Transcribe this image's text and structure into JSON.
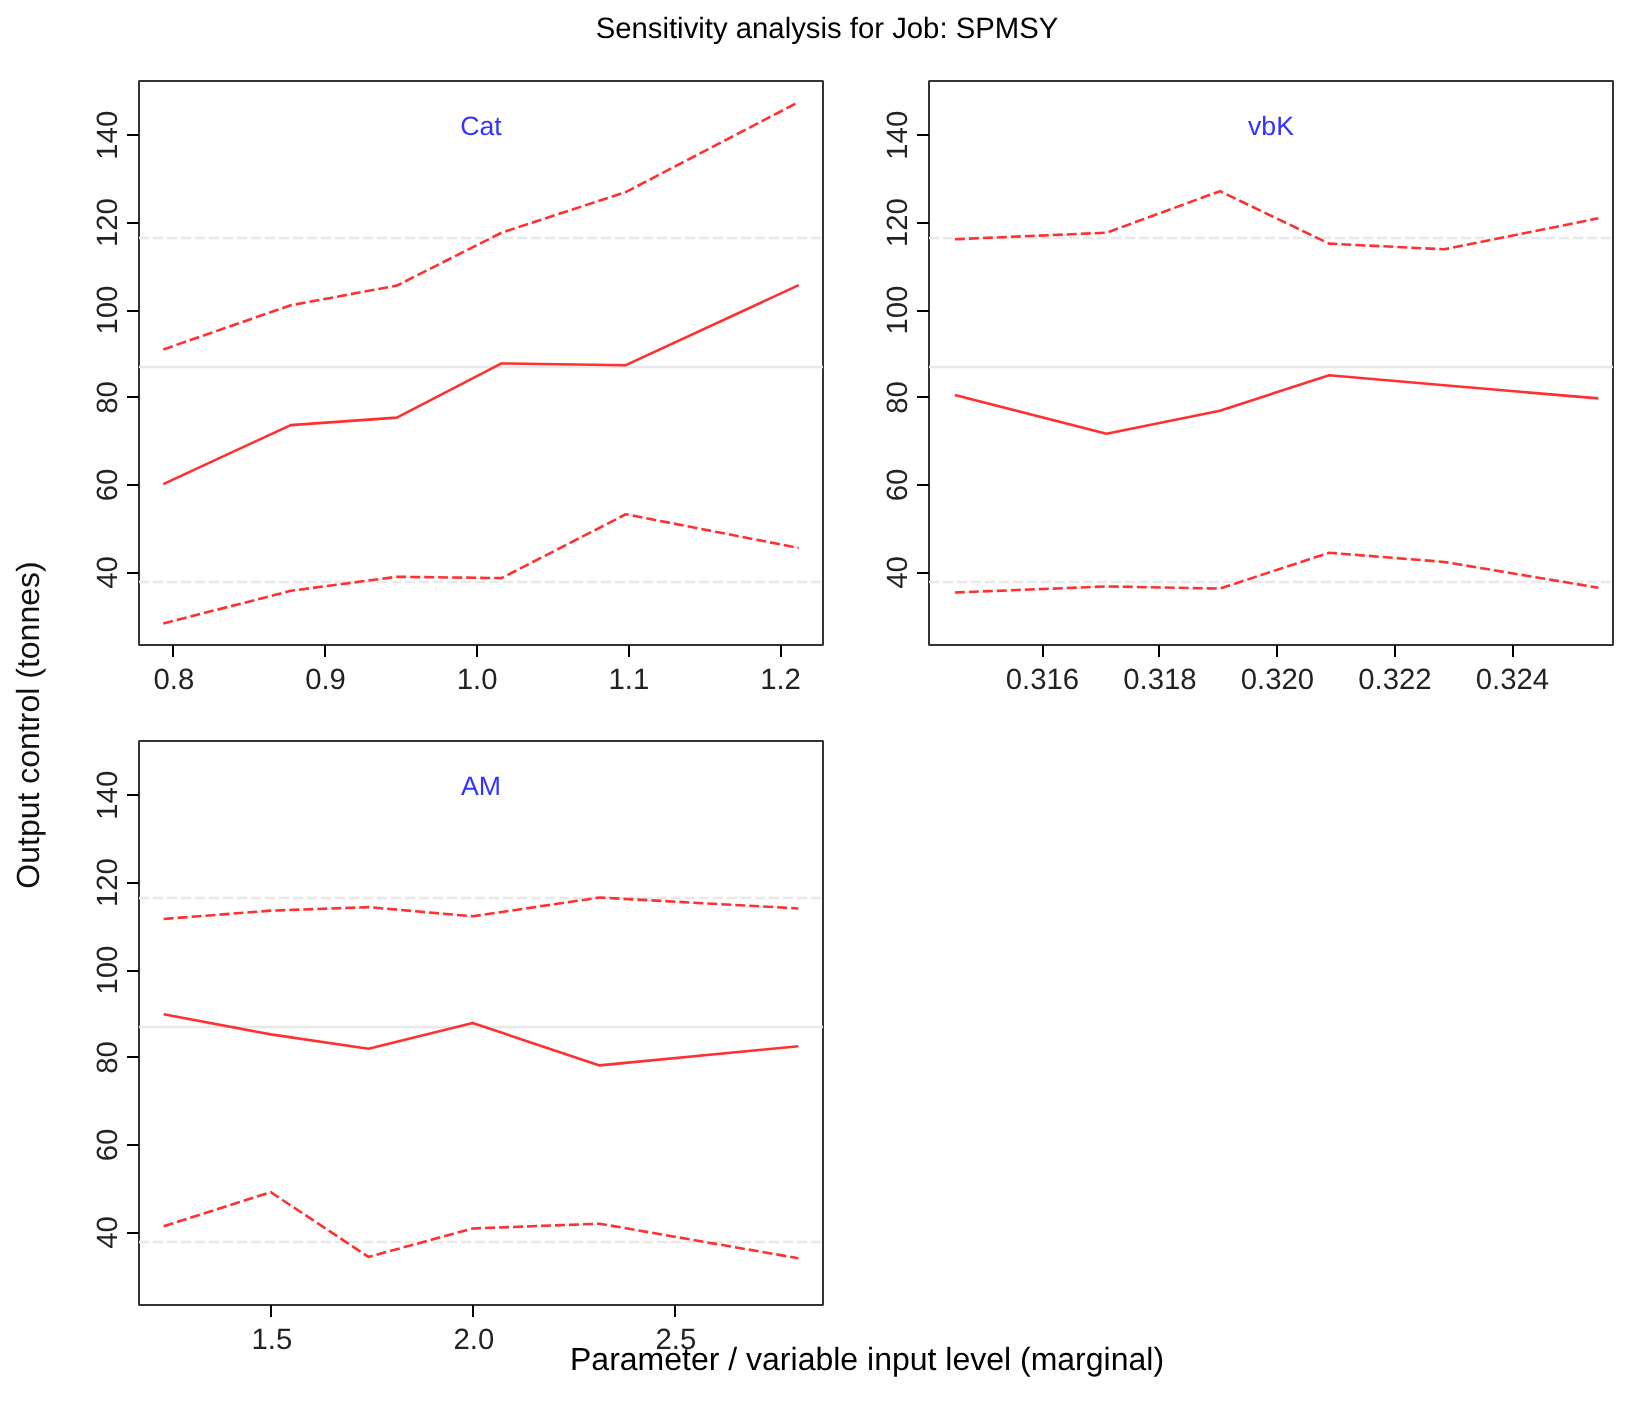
{
  "chart_data": [
    {
      "type": "line",
      "title": "Sensitivity analysis for Job: SPMSY",
      "ylabel": "Output control (tonnes)",
      "annotations": [
        "Cat"
      ],
      "x": [
        0.793,
        0.877,
        0.947,
        1.016,
        1.098,
        1.212
      ],
      "series": [
        {
          "color": "#ff3030",
          "line_style": "dashed",
          "values": [
            91.0,
            101.1,
            105.6,
            117.7,
            127.0,
            147.6
          ]
        },
        {
          "color": "#ff3030",
          "line_style": "solid",
          "values": [
            60.2,
            73.7,
            75.4,
            87.8,
            87.4,
            105.7
          ]
        },
        {
          "color": "#ff3030",
          "line_style": "dashed",
          "values": [
            28.3,
            35.8,
            39.0,
            38.7,
            53.3,
            45.6
          ]
        }
      ],
      "xlim": [
        0.777,
        1.228
      ],
      "ylim": [
        23.4,
        152.4
      ],
      "xticks": [
        0.8,
        0.9,
        {
          "value": 1.0,
          "label": "1.0"
        },
        1.1,
        1.2
      ],
      "yticks": [
        40,
        60,
        80,
        100,
        120,
        140
      ],
      "ref_lines": [
        {
          "axis": "y",
          "value": 87.0,
          "color": "#e8e8e8",
          "line_style": "solid"
        },
        {
          "axis": "y",
          "value": 116.5,
          "color": "#e8e8e8",
          "line_style": "dashed"
        },
        {
          "axis": "y",
          "value": 37.8,
          "color": "#e8e8e8",
          "line_style": "dashed"
        }
      ]
    },
    {
      "type": "line",
      "annotations": [
        "vbK"
      ],
      "x": [
        0.31451,
        0.31709,
        0.31902,
        0.32088,
        0.32284,
        0.32546
      ],
      "series": [
        {
          "color": "#ff3030",
          "line_style": "dashed",
          "values": [
            116.2,
            117.7,
            127.2,
            115.2,
            113.9,
            121.0
          ]
        },
        {
          "color": "#ff3030",
          "line_style": "solid",
          "values": [
            80.6,
            71.7,
            77.0,
            85.1,
            82.8,
            79.8
          ]
        },
        {
          "color": "#ff3030",
          "line_style": "dashed",
          "values": [
            35.4,
            36.8,
            36.3,
            44.5,
            42.4,
            36.5
          ]
        }
      ],
      "xlim": [
        0.31407,
        0.32571
      ],
      "ylim": [
        23.4,
        152.4
      ],
      "xticks": [
        0.316,
        0.318,
        {
          "value": 0.32,
          "label": "0.320"
        },
        0.322,
        0.324
      ],
      "yticks": [
        40,
        60,
        80,
        100,
        120,
        140
      ],
      "ref_lines": [
        {
          "axis": "y",
          "value": 87.0,
          "color": "#e8e8e8",
          "line_style": "solid"
        },
        {
          "axis": "y",
          "value": 116.5,
          "color": "#e8e8e8",
          "line_style": "dashed"
        },
        {
          "axis": "y",
          "value": 37.8,
          "color": "#e8e8e8",
          "line_style": "dashed"
        }
      ]
    },
    {
      "type": "line",
      "xlabel": "Parameter / variable input level (marginal)",
      "annotations": [
        "AM"
      ],
      "x": [
        1.232,
        1.497,
        1.739,
        1.997,
        2.311,
        2.803
      ],
      "series": [
        {
          "color": "#ff3030",
          "line_style": "dashed",
          "values": [
            111.7,
            113.6,
            114.4,
            112.3,
            116.6,
            114.1
          ]
        },
        {
          "color": "#ff3030",
          "line_style": "solid",
          "values": [
            89.9,
            85.3,
            82.0,
            87.9,
            78.2,
            82.6
          ]
        },
        {
          "color": "#ff3030",
          "line_style": "dashed",
          "values": [
            41.4,
            49.2,
            34.4,
            40.9,
            42.0,
            34.1
          ]
        }
      ],
      "xlim": [
        1.171,
        2.864
      ],
      "ylim": [
        23.4,
        152.4
      ],
      "xticks": [
        1.5,
        {
          "value": 2.0,
          "label": "2.0"
        },
        2.5
      ],
      "yticks": [
        40,
        60,
        80,
        100,
        120,
        140
      ],
      "ref_lines": [
        {
          "axis": "y",
          "value": 87.0,
          "color": "#e8e8e8",
          "line_style": "solid"
        },
        {
          "axis": "y",
          "value": 116.5,
          "color": "#e8e8e8",
          "line_style": "dashed"
        },
        {
          "axis": "y",
          "value": 37.8,
          "color": "#e8e8e8",
          "line_style": "dashed"
        }
      ]
    }
  ]
}
